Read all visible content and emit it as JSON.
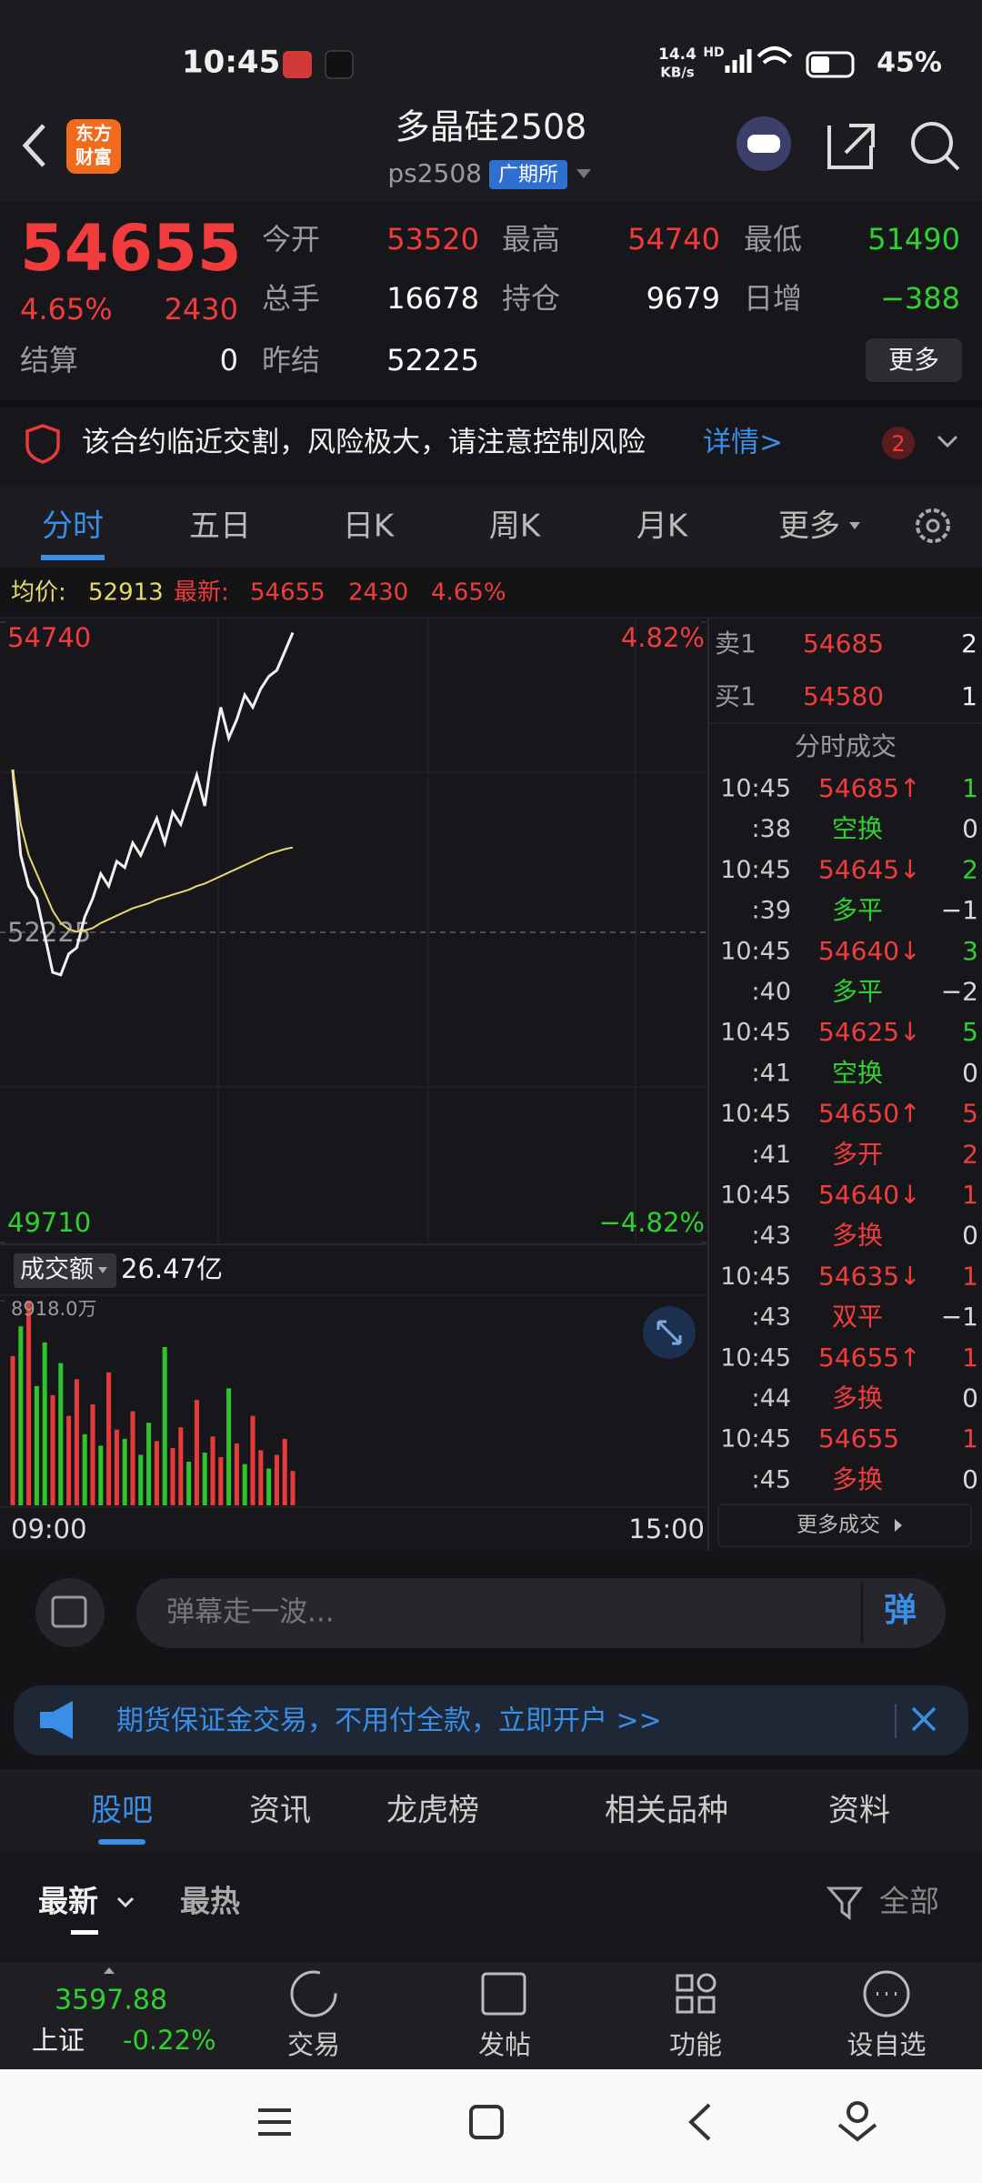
{
  "status_bar": {
    "time": "10:45",
    "speed": "14.4",
    "speed_unit": "KB/s",
    "hd": "HD",
    "battery": "45%"
  },
  "header": {
    "logo": [
      "东方",
      "财富"
    ],
    "title": "多晶硅2508",
    "code": "ps2508",
    "exchange": "广期所"
  },
  "quote": {
    "price": "54655",
    "change_pct": "4.65%",
    "change": "2430",
    "settle_label": "结算",
    "settle": "0",
    "more": "更多",
    "fields": [
      {
        "label": "今开",
        "value": "53520",
        "color": "#f03c3c"
      },
      {
        "label": "最高",
        "value": "54740",
        "color": "#f03c3c"
      },
      {
        "label": "最低",
        "value": "51490",
        "color": "#30d030"
      },
      {
        "label": "总手",
        "value": "16678",
        "color": "#ffffff"
      },
      {
        "label": "持仓",
        "value": "9679",
        "color": "#ffffff"
      },
      {
        "label": "日增",
        "value": "−388",
        "color": "#30d030"
      },
      {
        "label": "昨结",
        "value": "52225",
        "color": "#ffffff"
      }
    ]
  },
  "alert": {
    "text": "该合约临近交割，风险极大，请注意控制风险",
    "link": "详情>",
    "count": "2"
  },
  "tabs": [
    "分时",
    "五日",
    "日K",
    "周K",
    "月K",
    "更多"
  ],
  "info": {
    "avg_label": "均价:",
    "avg": "52913",
    "last_label": "最新:",
    "last": "54655",
    "change": "2430",
    "pct": "4.65%"
  },
  "chart_data": [
    {
      "type": "line",
      "ylim": [
        49710,
        54740
      ],
      "yticks": [
        49710,
        52225,
        54740
      ],
      "y2lim": [
        -4.82,
        4.82
      ],
      "y2ticks": [
        {
          "value": -4.82,
          "label": "−4.82%"
        },
        {
          "value": 4.82,
          "label": "4.82%"
        }
      ],
      "xticks": [
        "09:00",
        "15:00"
      ],
      "series": [
        {
          "color": "#f2f2f2",
          "values": [
            53545,
            52850,
            52600,
            52500,
            52200,
            51900,
            51880,
            52050,
            52100,
            52350,
            52500,
            52700,
            52600,
            52800,
            52750,
            52950,
            52850,
            53000,
            53150,
            52950,
            53200,
            53100,
            53300,
            53500,
            53250,
            53700,
            54050,
            53800,
            53950,
            54150,
            54050,
            54200,
            54300,
            54350,
            54500,
            54655
          ]
        },
        {
          "color": "#e8d870",
          "values": [
            53545,
            53100,
            52850,
            52700,
            52550,
            52400,
            52300,
            52250,
            52230,
            52240,
            52260,
            52300,
            52330,
            52360,
            52390,
            52420,
            52440,
            52460,
            52490,
            52510,
            52530,
            52550,
            52570,
            52600,
            52620,
            52650,
            52680,
            52710,
            52740,
            52770,
            52800,
            52830,
            52860,
            52880,
            52900,
            52913
          ]
        }
      ]
    },
    {
      "type": "bar",
      "label": "成交额",
      "total": "26.47亿",
      "ylim": [
        0,
        8918
      ],
      "yticks": [
        {
          "value": 8918,
          "label": "8918.0万"
        }
      ],
      "values": [
        6500,
        7800,
        8918,
        5200,
        7100,
        4800,
        6200,
        3900,
        5500,
        3100,
        4400,
        2600,
        5800,
        3300,
        2900,
        4100,
        2200,
        3600,
        2800,
        6900,
        2500,
        3400,
        1900,
        4600,
        2300,
        3000,
        2100,
        5100,
        2700,
        1800,
        3900,
        2400,
        1600,
        2200,
        2900,
        1500
      ],
      "colors": [
        "#e83a3a",
        "#2ec42e",
        "#e83a3a",
        "#2ec42e",
        "#2ec42e",
        "#e83a3a",
        "#2ec42e",
        "#e83a3a",
        "#e83a3a",
        "#2ec42e",
        "#e83a3a",
        "#2ec42e",
        "#e83a3a",
        "#e83a3a",
        "#2ec42e",
        "#e83a3a",
        "#2ec42e",
        "#2ec42e",
        "#e83a3a",
        "#2ec42e",
        "#e83a3a",
        "#e83a3a",
        "#2ec42e",
        "#e83a3a",
        "#2ec42e",
        "#e83a3a",
        "#e83a3a",
        "#2ec42e",
        "#e83a3a",
        "#2ec42e",
        "#e83a3a",
        "#e83a3a",
        "#2ec42e",
        "#e83a3a",
        "#e83a3a",
        "#e83a3a"
      ]
    }
  ],
  "order_book": {
    "asks": [
      {
        "label": "卖1",
        "price": "54685",
        "qty": "2"
      }
    ],
    "bids": [
      {
        "label": "买1",
        "price": "54580",
        "qty": "1"
      }
    ],
    "title": "分时成交",
    "rows": [
      {
        "time": "10:45",
        "text": "54685↑",
        "qty": "1",
        "color": "#f03c3c",
        "qty_color": "#30d030"
      },
      {
        "time": ":38",
        "text": "空换",
        "qty": "0",
        "color": "#30d030",
        "qty_color": "#d8d8d8"
      },
      {
        "time": "10:45",
        "text": "54645↓",
        "qty": "2",
        "color": "#f03c3c",
        "qty_color": "#30d030"
      },
      {
        "time": ":39",
        "text": "多平",
        "qty": "−1",
        "color": "#30d030",
        "qty_color": "#d8d8d8"
      },
      {
        "time": "10:45",
        "text": "54640↓",
        "qty": "3",
        "color": "#f03c3c",
        "qty_color": "#30d030"
      },
      {
        "time": ":40",
        "text": "多平",
        "qty": "−2",
        "color": "#30d030",
        "qty_color": "#d8d8d8"
      },
      {
        "time": "10:45",
        "text": "54625↓",
        "qty": "5",
        "color": "#f03c3c",
        "qty_color": "#30d030"
      },
      {
        "time": ":41",
        "text": "空换",
        "qty": "0",
        "color": "#30d030",
        "qty_color": "#d8d8d8"
      },
      {
        "time": "10:45",
        "text": "54650↑",
        "qty": "5",
        "color": "#f03c3c",
        "qty_color": "#f03c3c"
      },
      {
        "time": ":41",
        "text": "多开",
        "qty": "2",
        "color": "#f03c3c",
        "qty_color": "#f03c3c"
      },
      {
        "time": "10:45",
        "text": "54640↓",
        "qty": "1",
        "color": "#f03c3c",
        "qty_color": "#f03c3c"
      },
      {
        "time": ":43",
        "text": "多换",
        "qty": "0",
        "color": "#f03c3c",
        "qty_color": "#d8d8d8"
      },
      {
        "time": "10:45",
        "text": "54635↓",
        "qty": "1",
        "color": "#f03c3c",
        "qty_color": "#f03c3c"
      },
      {
        "time": ":43",
        "text": "双平",
        "qty": "−1",
        "color": "#f03c3c",
        "qty_color": "#d8d8d8"
      },
      {
        "time": "10:45",
        "text": "54655↑",
        "qty": "1",
        "color": "#f03c3c",
        "qty_color": "#f03c3c"
      },
      {
        "time": ":44",
        "text": "多换",
        "qty": "0",
        "color": "#f03c3c",
        "qty_color": "#d8d8d8"
      },
      {
        "time": "10:45",
        "text": "54655",
        "qty": "1",
        "color": "#f03c3c",
        "qty_color": "#f03c3c"
      },
      {
        "time": ":45",
        "text": "多换",
        "qty": "0",
        "color": "#f03c3c",
        "qty_color": "#d8d8d8"
      }
    ],
    "more": "更多成交"
  },
  "danmu": {
    "placeholder": "弹幕走一波...",
    "button": "弹"
  },
  "ad": {
    "text": "期货保证金交易，不用付全款，立即开户 >>"
  },
  "community_tabs": [
    "股吧",
    "资讯",
    "龙虎榜",
    "相关品种",
    "资料"
  ],
  "sort": {
    "options": [
      "最新",
      "最热"
    ],
    "filter": "全部"
  },
  "bottom_nav": {
    "index": {
      "value": "3597.88",
      "name": "上证",
      "pct": "-0.22%"
    },
    "items": [
      "交易",
      "发帖",
      "功能",
      "设自选"
    ]
  }
}
